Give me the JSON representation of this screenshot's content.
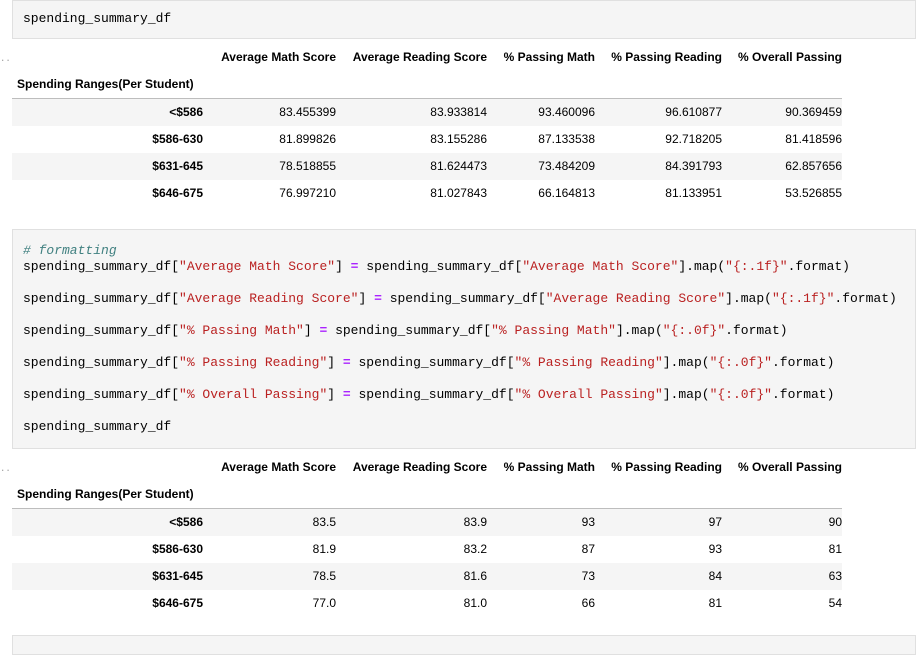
{
  "cell1": {
    "code": "spending_summary_df"
  },
  "table": {
    "index_name": "Spending Ranges(Per Student)",
    "columns": [
      "Average Math Score",
      "Average Reading Score",
      "% Passing Math",
      "% Passing Reading",
      "% Overall Passing"
    ],
    "rows_raw": [
      {
        "label": "<$586",
        "values": [
          "83.455399",
          "83.933814",
          "93.460096",
          "96.610877",
          "90.369459"
        ]
      },
      {
        "label": "$586-630",
        "values": [
          "81.899826",
          "83.155286",
          "87.133538",
          "92.718205",
          "81.418596"
        ]
      },
      {
        "label": "$631-645",
        "values": [
          "78.518855",
          "81.624473",
          "73.484209",
          "84.391793",
          "62.857656"
        ]
      },
      {
        "label": "$646-675",
        "values": [
          "76.997210",
          "81.027843",
          "66.164813",
          "81.133951",
          "53.526855"
        ]
      }
    ],
    "rows_formatted": [
      {
        "label": "<$586",
        "values": [
          "83.5",
          "83.9",
          "93",
          "97",
          "90"
        ]
      },
      {
        "label": "$586-630",
        "values": [
          "81.9",
          "83.2",
          "87",
          "93",
          "81"
        ]
      },
      {
        "label": "$631-645",
        "values": [
          "78.5",
          "81.6",
          "73",
          "84",
          "63"
        ]
      },
      {
        "label": "$646-675",
        "values": [
          "77.0",
          "81.0",
          "66",
          "81",
          "54"
        ]
      }
    ]
  },
  "cell2": {
    "comment": "# formatting",
    "lines": [
      {
        "var": "spending_summary_df[",
        "key": "\"Average Math Score\"",
        "mid": "] = spending_summary_df[",
        "key2": "\"Average Math Score\"",
        "tail1": "].map(",
        "fmt": "\"{:.1f}\"",
        "tail2": ".format)"
      },
      {
        "var": "spending_summary_df[",
        "key": "\"Average Reading Score\"",
        "mid": "] = spending_summary_df[",
        "key2": "\"Average Reading Score\"",
        "tail1": "].map(",
        "fmt": "\"{:.1f}\"",
        "tail2": ".format)"
      },
      {
        "var": "spending_summary_df[",
        "key": "\"% Passing Math\"",
        "mid": "] = spending_summary_df[",
        "key2": "\"% Passing Math\"",
        "tail1": "].map(",
        "fmt": "\"{:.0f}\"",
        "tail2": ".format)"
      },
      {
        "var": "spending_summary_df[",
        "key": "\"% Passing Reading\"",
        "mid": "] = spending_summary_df[",
        "key2": "\"% Passing Reading\"",
        "tail1": "].map(",
        "fmt": "\"{:.0f}\"",
        "tail2": ".format)"
      },
      {
        "var": "spending_summary_df[",
        "key": "\"% Overall Passing\"",
        "mid": "] = spending_summary_df[",
        "key2": "\"% Overall Passing\"",
        "tail1": "].map(",
        "fmt": "\"{:.0f}\"",
        "tail2": ".format)"
      }
    ],
    "last": "spending_summary_df"
  }
}
